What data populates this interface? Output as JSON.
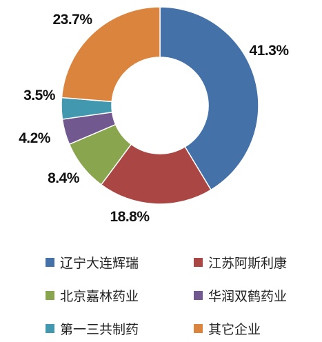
{
  "chart_data": {
    "type": "pie",
    "donut": true,
    "title": "",
    "series": [
      {
        "name": "辽宁大连辉瑞",
        "value": 41.3,
        "label": "41.3%",
        "color": "#4472A8"
      },
      {
        "name": "江苏阿斯利康",
        "value": 18.8,
        "label": "18.8%",
        "color": "#AA4643"
      },
      {
        "name": "北京嘉林药业",
        "value": 8.4,
        "label": "8.4%",
        "color": "#89A54E"
      },
      {
        "name": "华润双鹤药业",
        "value": 4.2,
        "label": "4.2%",
        "color": "#71588F"
      },
      {
        "name": "第一三共制药",
        "value": 3.5,
        "label": "3.5%",
        "color": "#4198AF"
      },
      {
        "name": "其它企业",
        "value": 23.7,
        "label": "23.7%",
        "color": "#DB843D"
      }
    ],
    "legend_position": "bottom",
    "start_angle_deg": 0,
    "direction": "clockwise"
  }
}
